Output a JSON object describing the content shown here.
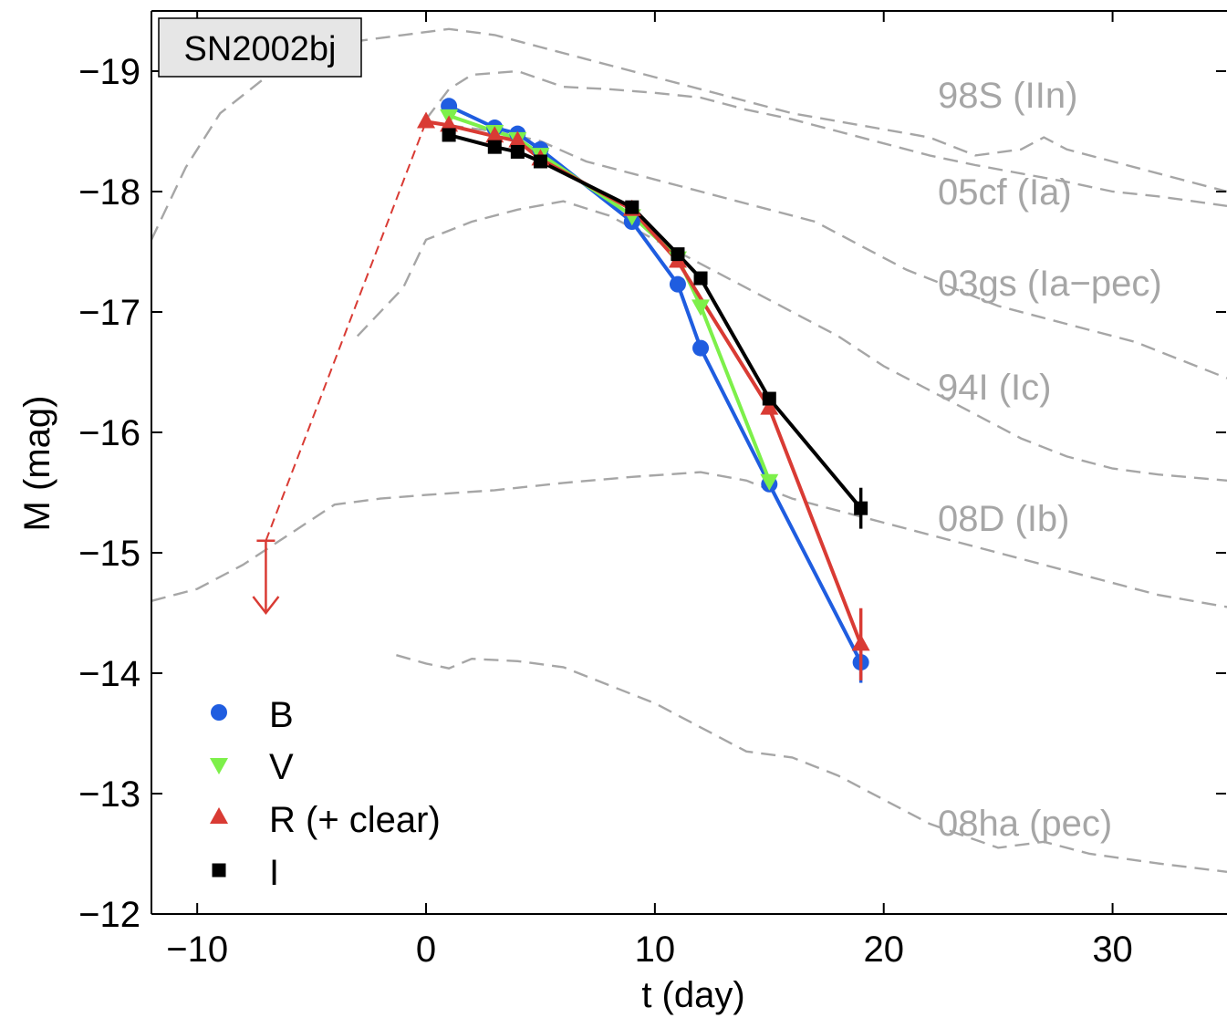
{
  "chart_data": {
    "type": "line",
    "title": "SN2002bj",
    "xlabel": "t (day)",
    "ylabel": "M (mag)",
    "xlim": [
      -12,
      35
    ],
    "ylim": [
      -12,
      -19.5
    ],
    "y_inverted": true,
    "xticks": [
      -10,
      0,
      10,
      20,
      30
    ],
    "xtick_labels": [
      "−10",
      "0",
      "10",
      "20",
      "30"
    ],
    "yticks": [
      -19,
      -18,
      -17,
      -16,
      -15,
      -14,
      -13,
      -12
    ],
    "ytick_labels": [
      "−19",
      "−18",
      "−17",
      "−16",
      "−15",
      "−14",
      "−13",
      "−12"
    ],
    "grid": false,
    "legend_position": "bottom-left",
    "series": [
      {
        "name": "B",
        "color": "#1f5de0",
        "marker": "circle",
        "x": [
          1,
          3,
          4,
          5,
          9,
          11,
          12,
          15,
          19
        ],
        "y": [
          -18.71,
          -18.53,
          -18.48,
          -18.35,
          -17.75,
          -17.23,
          -16.7,
          -15.57,
          -14.09
        ],
        "err": [
          0,
          0,
          0,
          0,
          0,
          0,
          0,
          0,
          0.17
        ]
      },
      {
        "name": "V",
        "color": "#7df04a",
        "marker": "triangle-down",
        "x": [
          1,
          3,
          4,
          5,
          9,
          11,
          12,
          15
        ],
        "y": [
          -18.63,
          -18.5,
          -18.44,
          -18.31,
          -17.8,
          -17.45,
          -17.05,
          -15.6
        ],
        "err": [
          0,
          0,
          0,
          0,
          0,
          0,
          0,
          0
        ]
      },
      {
        "name": "R (+ clear)",
        "color": "#d93b34",
        "marker": "triangle-up",
        "x": [
          0,
          1,
          3,
          4,
          5,
          9,
          11,
          15,
          19
        ],
        "y": [
          -18.58,
          -18.55,
          -18.46,
          -18.42,
          -18.27,
          -17.85,
          -17.42,
          -16.2,
          -14.24
        ],
        "err": [
          0,
          0,
          0,
          0,
          0,
          0,
          0,
          0,
          0.3
        ]
      },
      {
        "name": "I",
        "color": "#000000",
        "marker": "square",
        "x": [
          1,
          3,
          4,
          5,
          9,
          11,
          12,
          15,
          19
        ],
        "y": [
          -18.47,
          -18.37,
          -18.33,
          -18.25,
          -17.87,
          -17.48,
          -17.28,
          -16.28,
          -15.37
        ],
        "err": [
          0,
          0,
          0,
          0,
          0,
          0,
          0,
          0,
          0.17
        ]
      }
    ],
    "upper_limit": {
      "color": "#d93b34",
      "x": -7,
      "y": -15.1,
      "arrow_to": -14.5,
      "connect_to": {
        "x": 0,
        "y": -18.58
      }
    },
    "reference_curves": [
      {
        "name": "98S (IIn)",
        "color": "#a6a6a6",
        "x": [
          -12,
          -10.5,
          -9,
          -7,
          -5,
          -3,
          -1,
          1,
          3,
          5,
          7,
          10,
          13,
          16,
          19,
          22,
          24,
          26,
          27,
          28,
          30,
          32,
          35
        ],
        "y": [
          -17.6,
          -18.2,
          -18.65,
          -18.95,
          -19.1,
          -19.25,
          -19.3,
          -19.35,
          -19.3,
          -19.2,
          -19.1,
          -18.95,
          -18.8,
          -18.65,
          -18.55,
          -18.45,
          -18.3,
          -18.35,
          -18.45,
          -18.35,
          -18.25,
          -18.15,
          -18.0
        ]
      },
      {
        "name": "05cf (Ia)",
        "color": "#a6a6a6",
        "x": [
          0,
          1,
          2,
          4,
          6,
          8,
          10,
          12,
          14,
          16,
          18,
          20,
          22,
          24,
          26,
          28,
          30,
          32,
          35
        ],
        "y": [
          -18.6,
          -18.85,
          -18.97,
          -19.0,
          -18.87,
          -18.85,
          -18.82,
          -18.78,
          -18.68,
          -18.6,
          -18.5,
          -18.4,
          -18.3,
          -18.22,
          -18.15,
          -18.08,
          -18.0,
          -17.96,
          -17.88
        ]
      },
      {
        "name": "03gs (Ia−pec)",
        "color": "#a6a6a6",
        "x": [
          1,
          3,
          5,
          7,
          9,
          11,
          13,
          15,
          17,
          19,
          21,
          23,
          25,
          27,
          29,
          31,
          33,
          35
        ],
        "y": [
          -18.55,
          -18.5,
          -18.42,
          -18.25,
          -18.15,
          -18.05,
          -17.95,
          -17.85,
          -17.75,
          -17.55,
          -17.35,
          -17.2,
          -17.05,
          -16.95,
          -16.85,
          -16.75,
          -16.6,
          -16.45
        ]
      },
      {
        "name": "94I (Ic)",
        "color": "#a6a6a6",
        "x": [
          -3,
          -1,
          0,
          2,
          4,
          6,
          8,
          10,
          12,
          14,
          16,
          18,
          20,
          22,
          24,
          26,
          28,
          30,
          32,
          35
        ],
        "y": [
          -16.8,
          -17.2,
          -17.6,
          -17.75,
          -17.85,
          -17.92,
          -17.8,
          -17.6,
          -17.4,
          -17.2,
          -17.0,
          -16.8,
          -16.55,
          -16.35,
          -16.15,
          -15.95,
          -15.8,
          -15.7,
          -15.65,
          -15.6
        ]
      },
      {
        "name": "08D (Ib)",
        "color": "#a6a6a6",
        "x": [
          -12,
          -10,
          -8,
          -6,
          -4,
          -2,
          0,
          3,
          6,
          9,
          12,
          14,
          16,
          18,
          20,
          22,
          24,
          26,
          28,
          30,
          32,
          35
        ],
        "y": [
          -14.6,
          -14.7,
          -14.9,
          -15.15,
          -15.4,
          -15.45,
          -15.48,
          -15.52,
          -15.58,
          -15.63,
          -15.67,
          -15.6,
          -15.45,
          -15.35,
          -15.25,
          -15.15,
          -15.05,
          -14.95,
          -14.85,
          -14.75,
          -14.65,
          -14.55
        ]
      },
      {
        "name": "08ha (pec)",
        "color": "#a6a6a6",
        "x": [
          -1.3,
          0,
          1,
          2,
          4,
          6,
          8,
          10,
          12,
          14,
          16,
          18,
          20,
          22,
          25,
          27,
          29,
          32,
          35
        ],
        "y": [
          -14.15,
          -14.08,
          -14.04,
          -14.12,
          -14.1,
          -14.05,
          -13.9,
          -13.75,
          -13.55,
          -13.35,
          -13.3,
          -13.15,
          -12.95,
          -12.75,
          -12.55,
          -12.6,
          -12.5,
          -12.42,
          -12.35
        ]
      }
    ]
  }
}
